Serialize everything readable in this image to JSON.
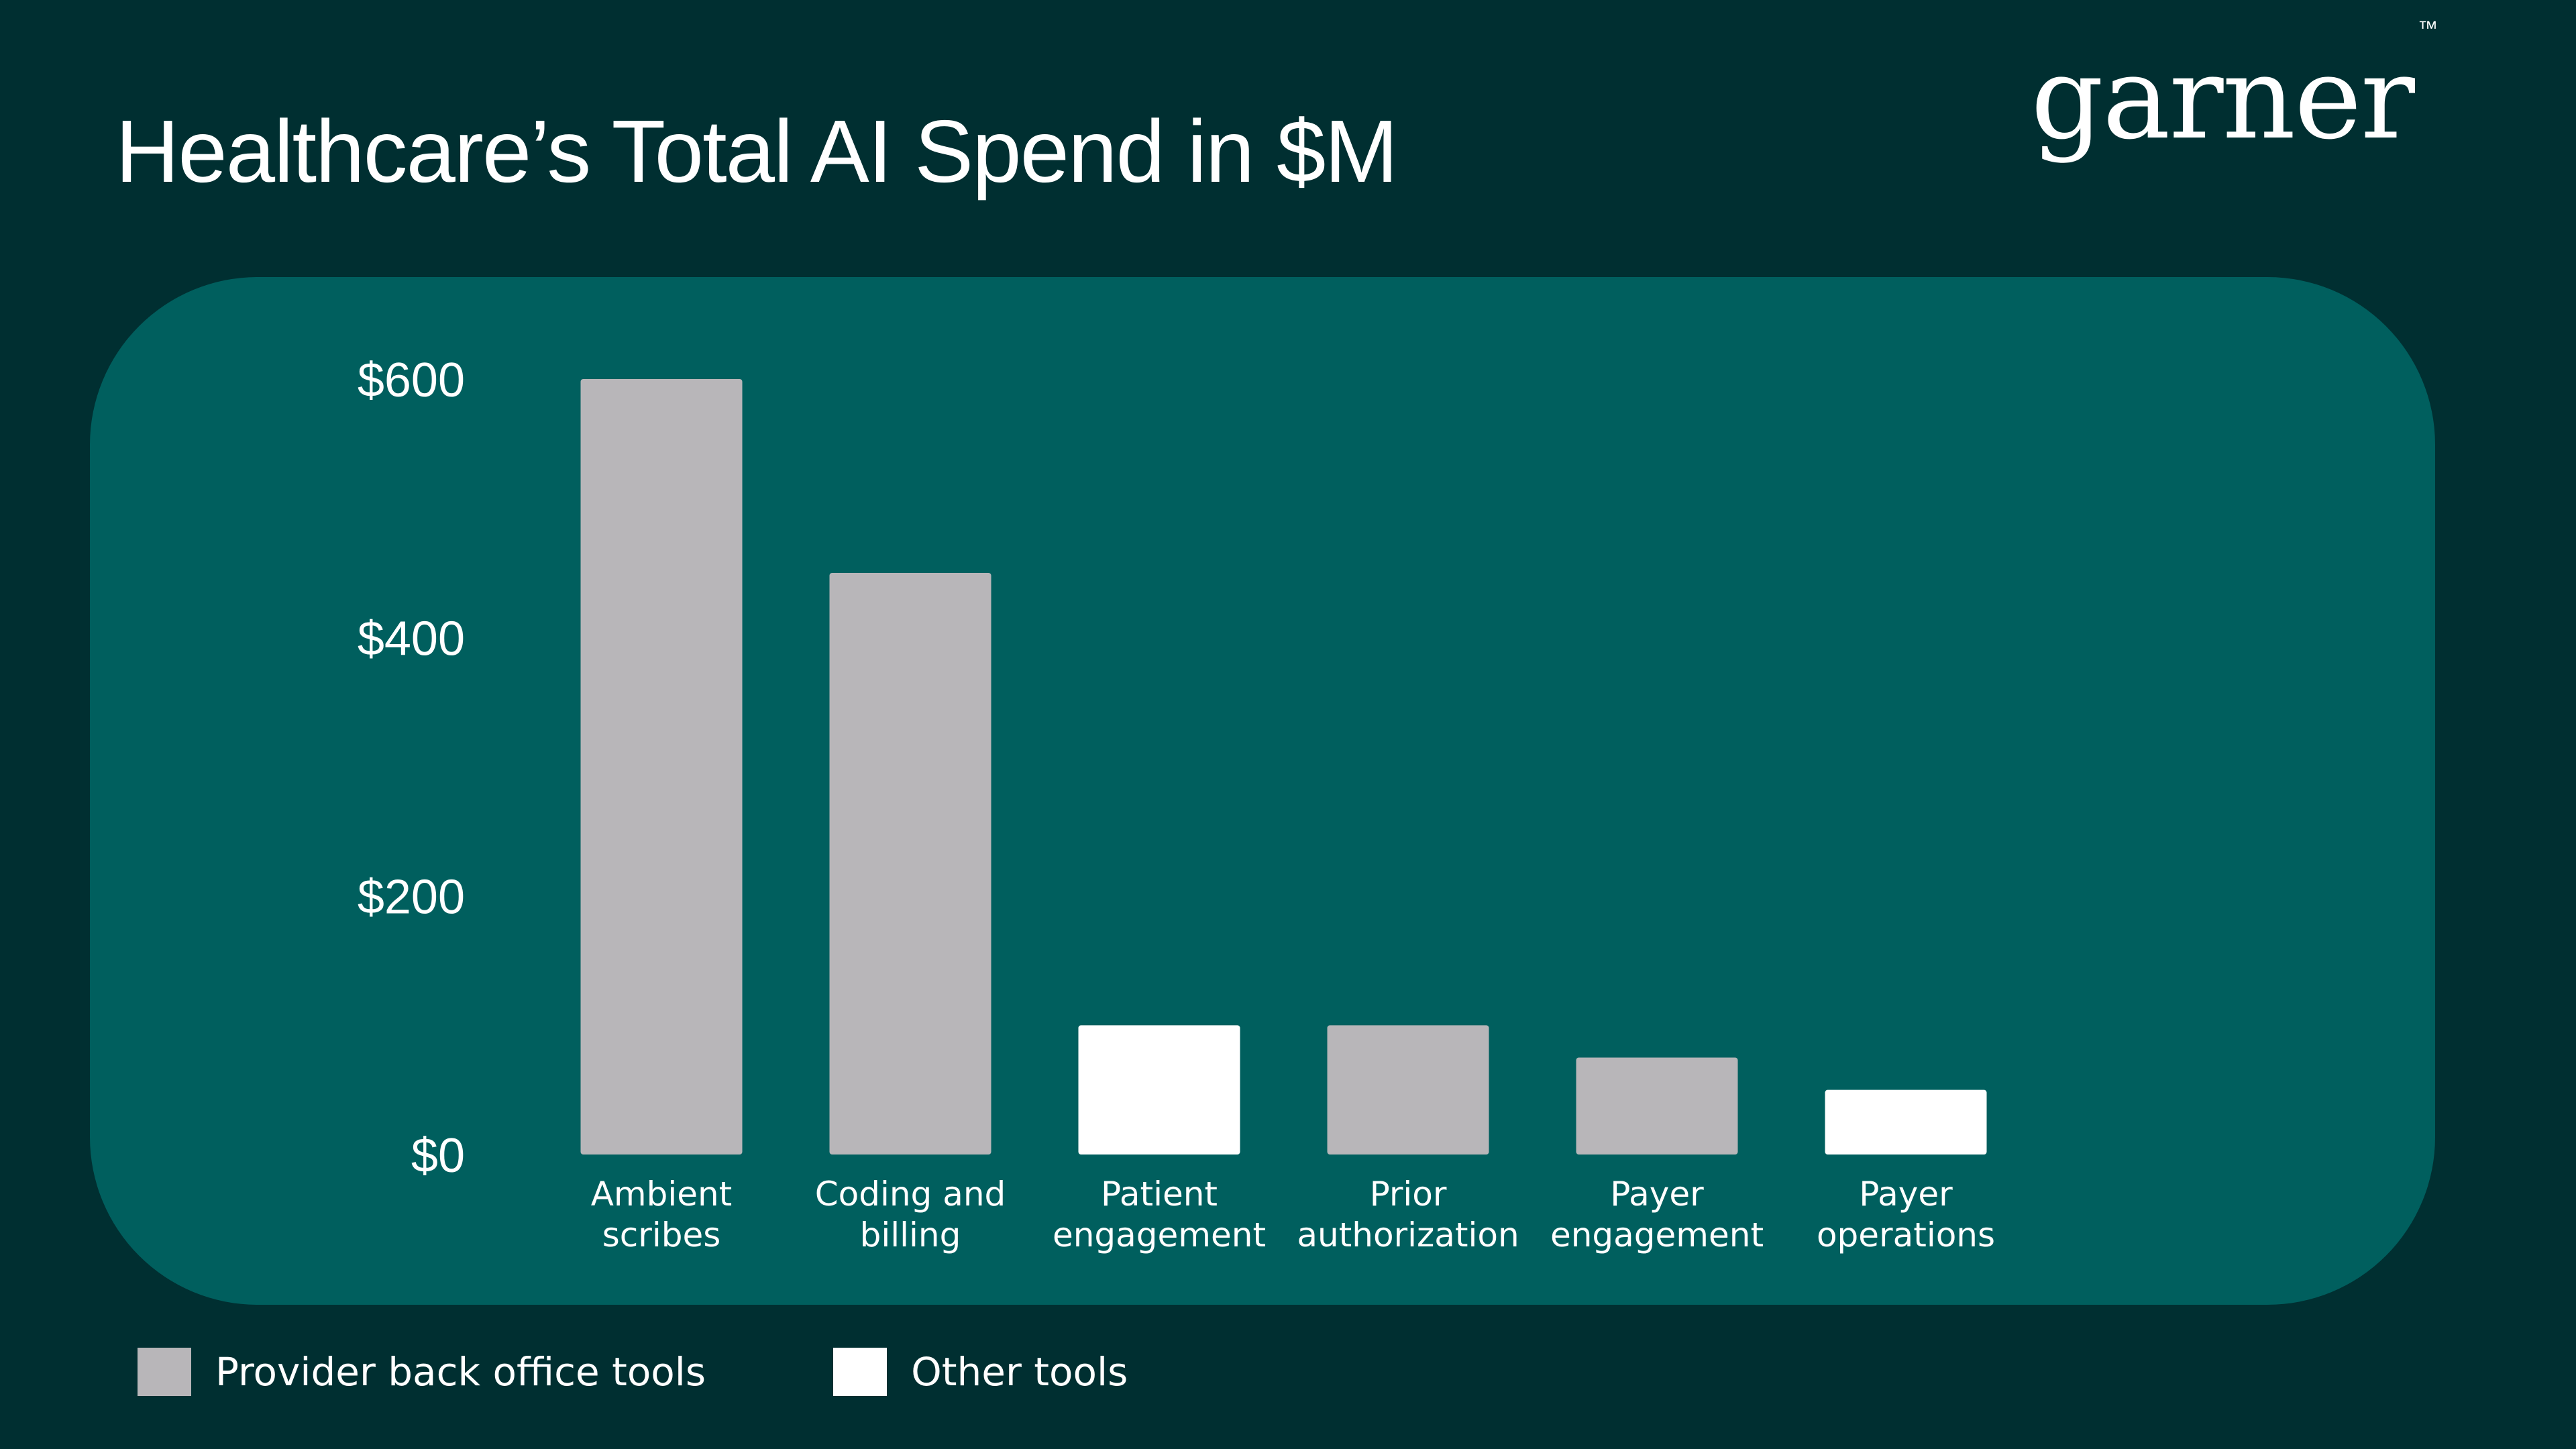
{
  "header": {
    "title": "Healthcare’s Total AI Spend in $M",
    "logo_text": "garner",
    "logo_mark": "™"
  },
  "colors": {
    "background": "#002f31",
    "panel": "#005f5e",
    "provider_back_office": "#b8b6b9",
    "other": "#ffffff"
  },
  "legend": [
    {
      "label": "Provider back office tools",
      "color": "#b8b6b9"
    },
    {
      "label": "Other tools",
      "color": "#ffffff"
    }
  ],
  "chart_data": {
    "type": "bar",
    "title": "Healthcare’s Total AI Spend in $M",
    "xlabel": "",
    "ylabel": "",
    "ylim": [
      0,
      600
    ],
    "yticks": [
      0,
      200,
      400,
      600
    ],
    "ytick_labels": [
      "$0",
      "$200",
      "$400",
      "$600"
    ],
    "grid": false,
    "legend_position": "bottom-left",
    "categories": [
      [
        "Ambient",
        "scribes"
      ],
      [
        "Coding and",
        "billing"
      ],
      [
        "Patient",
        "engagement"
      ],
      [
        "Prior",
        "authorization"
      ],
      [
        "Payer",
        "engagement"
      ],
      [
        "Payer",
        "operations"
      ]
    ],
    "values": [
      600,
      450,
      100,
      100,
      75,
      50
    ],
    "groups": [
      "Provider back office tools",
      "Provider back office tools",
      "Other tools",
      "Provider back office tools",
      "Provider back office tools",
      "Other tools"
    ]
  }
}
